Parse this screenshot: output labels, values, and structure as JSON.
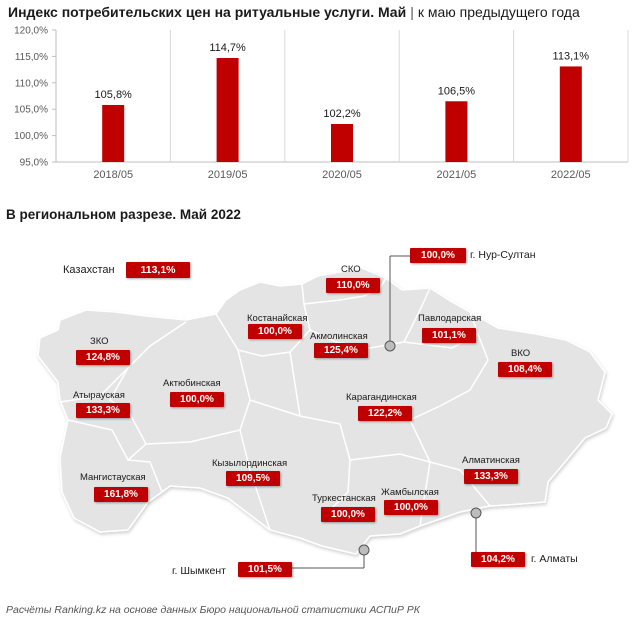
{
  "header": {
    "title_main": "Индекс потребительских цен на ритуальные услуги. Май",
    "separator": "|",
    "title_sub": "к маю предыдущего года"
  },
  "chart_data": {
    "type": "bar",
    "categories": [
      "2018/05",
      "2019/05",
      "2020/05",
      "2021/05",
      "2022/05"
    ],
    "values": [
      105.8,
      114.7,
      102.2,
      106.5,
      113.1
    ],
    "data_labels": [
      "105,8%",
      "114,7%",
      "102,2%",
      "106,5%",
      "113,1%"
    ],
    "ylim": [
      95.0,
      120.0
    ],
    "yticks": [
      95.0,
      100.0,
      105.0,
      110.0,
      115.0,
      120.0
    ],
    "ytick_labels": [
      "95,0%",
      "100,0%",
      "105,0%",
      "110,0%",
      "115,0%",
      "120,0%"
    ],
    "grid": "vertical category separators",
    "bar_color": "#c00000"
  },
  "section_title": "В региональном разрезе. Май 2022",
  "regions": [
    {
      "key": "kazakhstan",
      "name": "Казахстан",
      "value": "113,1%"
    },
    {
      "key": "sko",
      "name": "СКО",
      "value": "110,0%"
    },
    {
      "key": "nur-sultan",
      "name": "г. Нур-Султан",
      "value": "100,0%"
    },
    {
      "key": "kostanay",
      "name": "Костанайская",
      "value": "100,0%"
    },
    {
      "key": "akmola",
      "name": "Акмолинская",
      "value": "125,4%"
    },
    {
      "key": "pavlodar",
      "name": "Павлодарская",
      "value": "101,1%"
    },
    {
      "key": "zko",
      "name": "ЗКО",
      "value": "124,8%"
    },
    {
      "key": "vko",
      "name": "ВКО",
      "value": "108,4%"
    },
    {
      "key": "atyrau",
      "name": "Атырауская",
      "value": "133,3%"
    },
    {
      "key": "aktobe",
      "name": "Актюбинская",
      "value": "100,0%"
    },
    {
      "key": "karaganda",
      "name": "Карагандинская",
      "value": "122,2%"
    },
    {
      "key": "kyzylorda",
      "name": "Кызылординская",
      "value": "109,5%"
    },
    {
      "key": "almaty-region",
      "name": "Алматинская",
      "value": "133,3%"
    },
    {
      "key": "mangystau",
      "name": "Мангистауская",
      "value": "161,8%"
    },
    {
      "key": "turkestan",
      "name": "Туркестанская",
      "value": "100,0%"
    },
    {
      "key": "zhambyl",
      "name": "Жамбылская",
      "value": "100,0%"
    },
    {
      "key": "shymkent",
      "name": "г. Шымкент",
      "value": "101,5%"
    },
    {
      "key": "almaty-city",
      "name": "г. Алматы",
      "value": "104,2%"
    }
  ],
  "footer": "Расчёты Ranking.kz на основе данных Бюро национальной статистики АСПиР РК"
}
